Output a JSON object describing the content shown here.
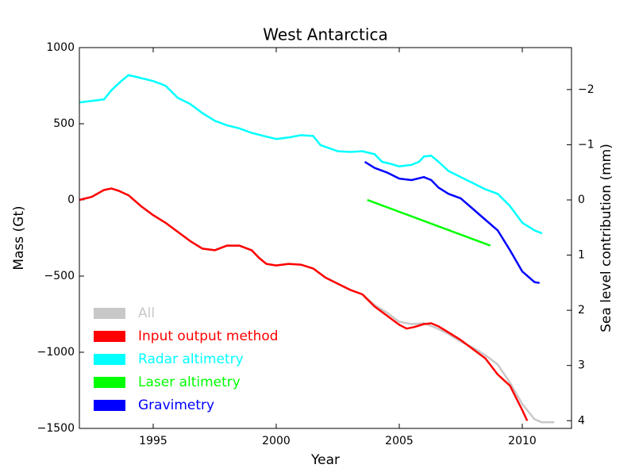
{
  "chart_data": {
    "type": "line",
    "title": "West Antarctica",
    "x_label": "Year",
    "y_label": "Mass (Gt)",
    "y2_label": "Sea level contribution (mm)",
    "xlim": [
      1992,
      2012
    ],
    "xticks": [
      1995,
      2000,
      2005,
      2010
    ],
    "ylim": [
      -1500,
      1000
    ],
    "yticks": [
      {
        "value": -1500,
        "label": "−1500"
      },
      {
        "value": -1000,
        "label": "−1000"
      },
      {
        "value": -500,
        "label": "−500"
      },
      0,
      500,
      1000
    ],
    "y2lim": [
      4.14,
      -2.76
    ],
    "y2ticks": [
      {
        "value": -2,
        "label": "−2"
      },
      {
        "value": -1,
        "label": "−1"
      },
      0,
      1,
      2,
      3,
      4
    ],
    "grid": false,
    "legend": "lower left",
    "series": [
      {
        "name": "All",
        "color": "#c8c8c8",
        "x": [
          1992.0,
          1992.5,
          1993.0,
          1993.3,
          1993.6,
          1994.0,
          1994.5,
          1995.0,
          1995.5,
          1996.0,
          1996.5,
          1997.0,
          1997.5,
          1998.0,
          1998.5,
          1999.0,
          1999.3,
          1999.6,
          2000.0,
          2000.5,
          2001.0,
          2001.5,
          2002.0,
          2002.5,
          2003.0,
          2003.5,
          2004.0,
          2004.5,
          2005.0,
          2005.5,
          2006.0,
          2006.5,
          2007.0,
          2007.5,
          2008.0,
          2008.5,
          2009.0,
          2009.5,
          2010.0,
          2010.5,
          2010.8,
          2011.3
        ],
        "values": [
          0,
          20,
          65,
          75,
          60,
          30,
          -40,
          -100,
          -150,
          -210,
          -270,
          -320,
          -330,
          -300,
          -300,
          -330,
          -380,
          -420,
          -430,
          -420,
          -425,
          -450,
          -510,
          -550,
          -590,
          -620,
          -690,
          -740,
          -800,
          -815,
          -810,
          -840,
          -880,
          -930,
          -970,
          -1020,
          -1080,
          -1200,
          -1340,
          -1440,
          -1460,
          -1460
        ]
      },
      {
        "name": "Input output method",
        "color": "#ff0000",
        "x": [
          1992.0,
          1992.5,
          1993.0,
          1993.3,
          1993.6,
          1994.0,
          1994.5,
          1995.0,
          1995.5,
          1996.0,
          1996.5,
          1997.0,
          1997.5,
          1998.0,
          1998.5,
          1999.0,
          1999.3,
          1999.6,
          2000.0,
          2000.5,
          2001.0,
          2001.5,
          2002.0,
          2002.5,
          2003.0,
          2003.5,
          2004.0,
          2004.5,
          2005.0,
          2005.3,
          2005.6,
          2006.0,
          2006.3,
          2006.6,
          2007.0,
          2007.5,
          2008.0,
          2008.5,
          2009.0,
          2009.5,
          2010.0,
          2010.2
        ],
        "values": [
          0,
          20,
          65,
          75,
          60,
          30,
          -40,
          -100,
          -150,
          -210,
          -270,
          -320,
          -330,
          -300,
          -300,
          -330,
          -380,
          -420,
          -430,
          -420,
          -425,
          -450,
          -510,
          -550,
          -590,
          -620,
          -700,
          -760,
          -820,
          -845,
          -835,
          -815,
          -810,
          -830,
          -870,
          -920,
          -980,
          -1040,
          -1146,
          -1220,
          -1380,
          -1450
        ]
      },
      {
        "name": "Radar altimetry",
        "color": "#00ffff",
        "x": [
          1992.0,
          1992.5,
          1993.0,
          1993.3,
          1993.7,
          1994.0,
          1994.5,
          1995.0,
          1995.5,
          1996.0,
          1996.5,
          1997.0,
          1997.5,
          1998.0,
          1998.5,
          1999.0,
          1999.5,
          2000.0,
          2000.5,
          2001.0,
          2001.5,
          2001.8,
          2002.5,
          2003.0,
          2003.5,
          2004.0,
          2004.3,
          2004.7,
          2005.0,
          2005.5,
          2005.8,
          2006.0,
          2006.3,
          2006.6,
          2007.0,
          2007.5,
          2008.0,
          2008.5,
          2009.0,
          2009.5,
          2010.0,
          2010.5,
          2010.8
        ],
        "values": [
          640,
          650,
          660,
          720,
          780,
          820,
          800,
          780,
          750,
          670,
          630,
          570,
          520,
          490,
          470,
          440,
          420,
          400,
          410,
          425,
          420,
          360,
          320,
          315,
          320,
          300,
          250,
          235,
          220,
          230,
          250,
          285,
          290,
          250,
          190,
          150,
          110,
          70,
          40,
          -40,
          -150,
          -200,
          -220
        ]
      },
      {
        "name": "Laser altimetry",
        "color": "#00ff00",
        "x": [
          2003.7,
          2008.7
        ],
        "values": [
          0,
          -300
        ]
      },
      {
        "name": "Gravimetry",
        "color": "#0000ff",
        "x": [
          2003.6,
          2004.0,
          2004.5,
          2005.0,
          2005.5,
          2006.0,
          2006.3,
          2006.6,
          2007.0,
          2007.5,
          2008.0,
          2008.5,
          2009.0,
          2009.5,
          2010.0,
          2010.5,
          2010.7
        ],
        "values": [
          250,
          210,
          180,
          140,
          130,
          150,
          130,
          80,
          40,
          10,
          -60,
          -130,
          -200,
          -330,
          -470,
          -540,
          -545
        ]
      }
    ]
  }
}
